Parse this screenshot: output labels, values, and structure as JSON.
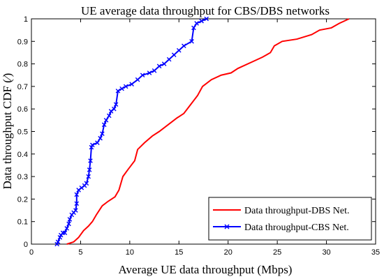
{
  "chart_data": {
    "type": "line",
    "title": "UE average data throughput for CBS/DBS networks",
    "xlabel": "Average UE data throughput (Mbps)",
    "ylabel": "Data throughput CDF (⁄)",
    "xlim": [
      0,
      35
    ],
    "ylim": [
      0,
      1
    ],
    "x_ticks": [
      "0",
      "5",
      "10",
      "15",
      "20",
      "25",
      "30",
      "35"
    ],
    "y_ticks": [
      "0",
      "0.1",
      "0.2",
      "0.3",
      "0.4",
      "0.5",
      "0.6",
      "0.7",
      "0.8",
      "0.9",
      "1"
    ],
    "legend_position": "bottom-right",
    "grid": false,
    "series": [
      {
        "name": "Data throughput-DBS Net.",
        "color": "#ff0000",
        "marker": "none",
        "points": [
          [
            3.6,
            0.0
          ],
          [
            4.3,
            0.01
          ],
          [
            4.8,
            0.03
          ],
          [
            5.3,
            0.06
          ],
          [
            5.8,
            0.08
          ],
          [
            6.2,
            0.1
          ],
          [
            6.6,
            0.13
          ],
          [
            7.2,
            0.17
          ],
          [
            7.8,
            0.19
          ],
          [
            8.5,
            0.21
          ],
          [
            8.9,
            0.24
          ],
          [
            9.3,
            0.3
          ],
          [
            9.8,
            0.33
          ],
          [
            10.5,
            0.37
          ],
          [
            10.8,
            0.42
          ],
          [
            11.5,
            0.45
          ],
          [
            12.3,
            0.48
          ],
          [
            13.0,
            0.5
          ],
          [
            13.9,
            0.53
          ],
          [
            14.8,
            0.56
          ],
          [
            15.5,
            0.58
          ],
          [
            16.2,
            0.62
          ],
          [
            16.9,
            0.66
          ],
          [
            17.4,
            0.7
          ],
          [
            18.3,
            0.73
          ],
          [
            19.3,
            0.75
          ],
          [
            20.3,
            0.76
          ],
          [
            21.0,
            0.78
          ],
          [
            22.5,
            0.81
          ],
          [
            23.5,
            0.83
          ],
          [
            24.3,
            0.85
          ],
          [
            24.7,
            0.88
          ],
          [
            25.5,
            0.9
          ],
          [
            27.0,
            0.91
          ],
          [
            28.5,
            0.93
          ],
          [
            29.3,
            0.95
          ],
          [
            30.5,
            0.96
          ],
          [
            31.3,
            0.98
          ],
          [
            32.3,
            1.0
          ]
        ]
      },
      {
        "name": "Data throughput-CBS Net.",
        "color": "#0000ff",
        "marker": "x",
        "points": [
          [
            2.6,
            0.0
          ],
          [
            2.7,
            0.01
          ],
          [
            2.9,
            0.03
          ],
          [
            3.0,
            0.04
          ],
          [
            3.2,
            0.05
          ],
          [
            3.4,
            0.05
          ],
          [
            3.6,
            0.07
          ],
          [
            3.8,
            0.09
          ],
          [
            3.9,
            0.11
          ],
          [
            4.1,
            0.13
          ],
          [
            4.3,
            0.14
          ],
          [
            4.5,
            0.15
          ],
          [
            4.6,
            0.18
          ],
          [
            4.6,
            0.22
          ],
          [
            4.8,
            0.24
          ],
          [
            5.1,
            0.25
          ],
          [
            5.4,
            0.26
          ],
          [
            5.6,
            0.27
          ],
          [
            5.8,
            0.3
          ],
          [
            5.9,
            0.33
          ],
          [
            6.0,
            0.37
          ],
          [
            6.1,
            0.43
          ],
          [
            6.2,
            0.44
          ],
          [
            6.7,
            0.45
          ],
          [
            7.0,
            0.47
          ],
          [
            7.2,
            0.49
          ],
          [
            7.4,
            0.53
          ],
          [
            7.6,
            0.55
          ],
          [
            7.9,
            0.57
          ],
          [
            8.1,
            0.59
          ],
          [
            8.4,
            0.6
          ],
          [
            8.6,
            0.62
          ],
          [
            8.8,
            0.68
          ],
          [
            9.2,
            0.69
          ],
          [
            9.6,
            0.7
          ],
          [
            10.2,
            0.71
          ],
          [
            10.8,
            0.73
          ],
          [
            11.3,
            0.75
          ],
          [
            12.0,
            0.76
          ],
          [
            12.5,
            0.77
          ],
          [
            13.0,
            0.79
          ],
          [
            13.5,
            0.8
          ],
          [
            14.0,
            0.82
          ],
          [
            14.5,
            0.84
          ],
          [
            15.0,
            0.86
          ],
          [
            15.5,
            0.88
          ],
          [
            16.3,
            0.9
          ],
          [
            16.5,
            0.96
          ],
          [
            16.8,
            0.98
          ],
          [
            17.3,
            0.99
          ],
          [
            17.8,
            1.0
          ]
        ]
      }
    ]
  }
}
